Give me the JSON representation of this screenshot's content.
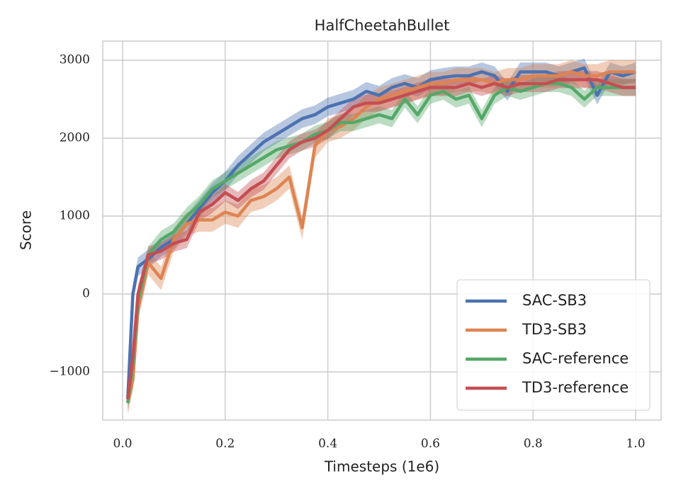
{
  "chart_data": {
    "type": "line",
    "title": "HalfCheetahBullet",
    "x_label": "Timesteps (1e6)",
    "y_label": "Score",
    "xlim": [
      -0.0387,
      1.0497
    ],
    "ylim": [
      -1618,
      3245
    ],
    "xticks": [
      {
        "value": 0,
        "label": "0.0"
      },
      0.2,
      0.4,
      0.6,
      0.8,
      {
        "value": 1,
        "label": "1.0"
      }
    ],
    "yticks": [
      {
        "value": -1000,
        "label": "−1000"
      },
      0,
      1000,
      2000,
      3000
    ],
    "grid": true,
    "legend": "lower right",
    "x": [
      0.01,
      0.02,
      0.03,
      0.05,
      0.075,
      0.1,
      0.125,
      0.15,
      0.175,
      0.2,
      0.225,
      0.25,
      0.275,
      0.3,
      0.325,
      0.35,
      0.375,
      0.4,
      0.425,
      0.45,
      0.475,
      0.5,
      0.525,
      0.55,
      0.575,
      0.6,
      0.625,
      0.65,
      0.675,
      0.7,
      0.725,
      0.75,
      0.775,
      0.8,
      0.825,
      0.85,
      0.875,
      0.9,
      0.925,
      0.95,
      0.975,
      1.0
    ],
    "series": [
      {
        "name": "SAC-SB3",
        "color": "#4c72b0",
        "spread": 120,
        "values": [
          -1350,
          0,
          350,
          450,
          600,
          700,
          900,
          1100,
          1300,
          1450,
          1650,
          1800,
          1950,
          2050,
          2150,
          2250,
          2300,
          2400,
          2450,
          2500,
          2600,
          2550,
          2650,
          2700,
          2650,
          2750,
          2780,
          2800,
          2800,
          2850,
          2800,
          2600,
          2850,
          2850,
          2850,
          2800,
          2850,
          2900,
          2550,
          2850,
          2800,
          2850
        ]
      },
      {
        "name": "TD3-SB3",
        "color": "#dd8452",
        "spread": 150,
        "values": [
          -1400,
          -1100,
          -200,
          400,
          200,
          700,
          900,
          950,
          950,
          1050,
          1000,
          1200,
          1250,
          1350,
          1500,
          850,
          1900,
          2100,
          2150,
          2250,
          2400,
          2500,
          2550,
          2600,
          2650,
          2700,
          2700,
          2750,
          2750,
          2750,
          2700,
          2750,
          2750,
          2800,
          2800,
          2800,
          2850,
          2800,
          2800,
          2850,
          2850,
          2850
        ]
      },
      {
        "name": "SAC-reference",
        "color": "#55a868",
        "spread": 110,
        "values": [
          -1400,
          -900,
          -100,
          500,
          700,
          800,
          1000,
          1150,
          1350,
          1450,
          1550,
          1650,
          1750,
          1850,
          1900,
          1950,
          2050,
          2100,
          2200,
          2200,
          2250,
          2300,
          2250,
          2500,
          2300,
          2550,
          2600,
          2500,
          2550,
          2250,
          2550,
          2650,
          2600,
          2650,
          2700,
          2700,
          2650,
          2500,
          2650,
          2650,
          2650,
          2650
        ]
      },
      {
        "name": "TD3-reference",
        "color": "#c44e52",
        "spread": 110,
        "values": [
          -1350,
          -800,
          0,
          500,
          550,
          650,
          700,
          1050,
          1150,
          1300,
          1200,
          1350,
          1450,
          1650,
          1850,
          1950,
          2000,
          2100,
          2250,
          2400,
          2450,
          2450,
          2500,
          2550,
          2600,
          2650,
          2650,
          2650,
          2700,
          2650,
          2700,
          2650,
          2700,
          2700,
          2700,
          2750,
          2750,
          2750,
          2750,
          2700,
          2650,
          2650
        ]
      }
    ]
  }
}
